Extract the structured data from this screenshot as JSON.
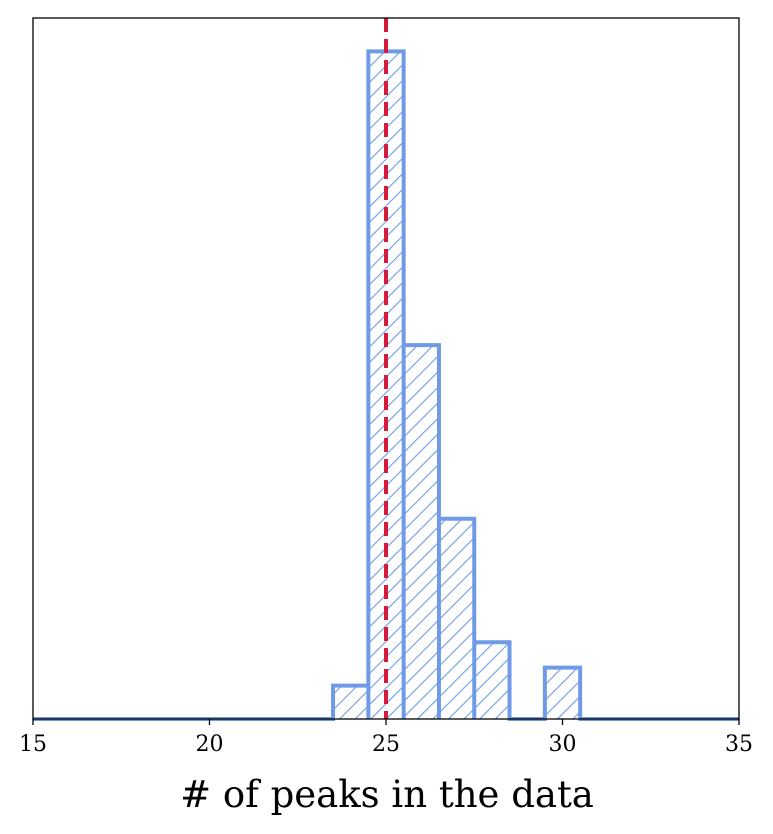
{
  "chart_data": {
    "type": "histogram",
    "style": "step",
    "hatch": "diagonal",
    "xlabel": "# of peaks in the data",
    "ylabel": "",
    "title": "",
    "xlim": [
      15,
      35
    ],
    "ylim": [
      0,
      1.05
    ],
    "xticks": [
      15,
      20,
      25,
      30,
      35
    ],
    "yticks": [],
    "bin_width": 1,
    "bins": [
      {
        "x": 24,
        "value": 0.05
      },
      {
        "x": 25,
        "value": 1.0
      },
      {
        "x": 26,
        "value": 0.56
      },
      {
        "x": 27,
        "value": 0.3
      },
      {
        "x": 28,
        "value": 0.115
      },
      {
        "x": 30,
        "value": 0.077
      }
    ],
    "reference_line": {
      "x": 25,
      "style": "dashed"
    },
    "grid": false,
    "colors": {
      "histogram": "#6f9be6",
      "reference_line": "#d61a3c",
      "axes": "#000000"
    }
  }
}
